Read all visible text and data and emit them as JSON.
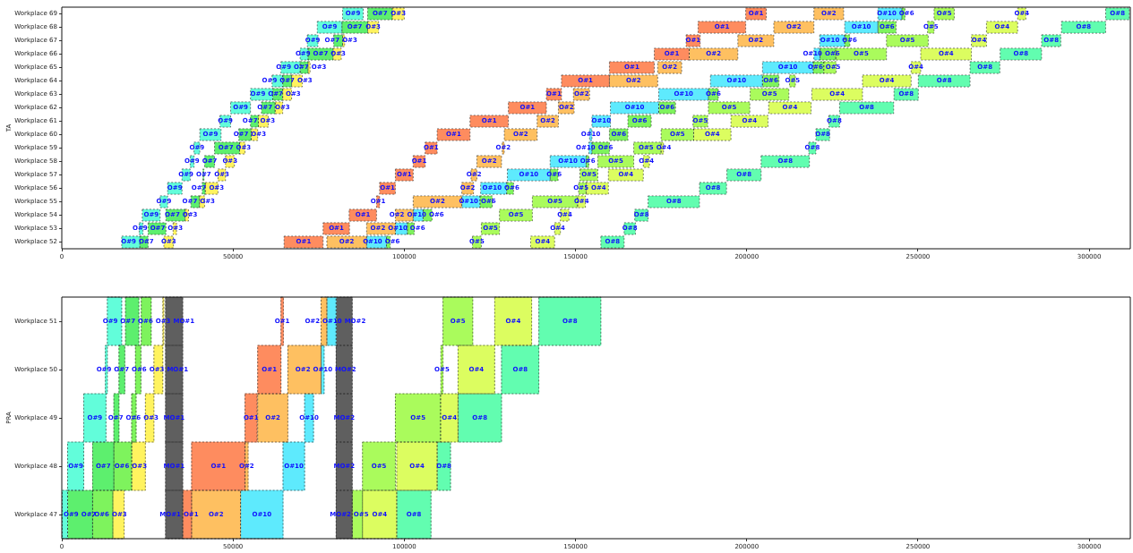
{
  "chart_data": [
    {
      "type": "bar",
      "orientation": "horizontal",
      "ylabel": "TA",
      "categories": [
        "Workplace 69",
        "Workplace 68",
        "Workplace 67",
        "Workplace 66",
        "Workplace 65",
        "Workplace 64",
        "Workplace 63",
        "Workplace 62",
        "Workplace 61",
        "Workplace 60",
        "Workplace 59",
        "Workplace 58",
        "Workplace 57",
        "Workplace 56",
        "Workplace 55",
        "Workplace 54",
        "Workplace 53",
        "Workplace 52"
      ],
      "series": [
        {
          "name": "O#9",
          "color": "#62fdda",
          "base": [
            82000,
            74600,
            71700,
            69600,
            64000,
            61400,
            55100,
            49300,
            46200,
            40300,
            38600,
            37500,
            35100,
            30900,
            28700,
            23500,
            22600,
            17500
          ],
          "values": [
            6000,
            7200,
            3100,
            2300,
            5600,
            3100,
            6500,
            5800,
            3100,
            6200,
            1700,
            1100,
            2400,
            4200,
            2200,
            5200,
            1100,
            5300
          ]
        },
        {
          "name": "O#7",
          "color": "#5def6e",
          "base": [
            89300,
            81800,
            79400,
            71900,
            69600,
            64500,
            61600,
            58300,
            55100,
            51700,
            44600,
            41700,
            41200,
            41000,
            37700,
            30400,
            25200,
            22800
          ],
          "values": [
            7200,
            7500,
            2600,
            7300,
            2300,
            2600,
            2900,
            4000,
            2300,
            3600,
            7300,
            2900,
            300,
            900,
            2500,
            5600,
            5200,
            2400
          ]
        },
        {
          "name": "O#3",
          "color": "#fff35f",
          "base": [
            96500,
            89300,
            82000,
            79200,
            71900,
            67100,
            64500,
            62300,
            57400,
            55300,
            51900,
            47800,
            45600,
            41900,
            40200,
            36000,
            32500,
            29800
          ],
          "values": [
            3500,
            3200,
            600,
            2400,
            600,
            3100,
            2600,
            2200,
            2900,
            1900,
            1600,
            2600,
            2200,
            3700,
            1500,
            1000,
            1000,
            2800
          ]
        },
        {
          "name": "O#1",
          "color": "#fe8c5f",
          "base": [
            199700,
            185800,
            182300,
            173000,
            159900,
            145900,
            141500,
            130400,
            119200,
            109600,
            106100,
            102600,
            97400,
            92800,
            91900,
            83900,
            76300,
            64900
          ],
          "values": [
            6000,
            13900,
            4100,
            10200,
            13100,
            14000,
            4400,
            11100,
            11200,
            9600,
            3500,
            3500,
            5200,
            4600,
            900,
            8000,
            7700,
            11400
          ]
        },
        {
          "name": "O#2",
          "color": "#fec061",
          "base": [
            219600,
            207900,
            197400,
            183200,
            174000,
            159900,
            149400,
            145000,
            138800,
            129200,
            128600,
            121200,
            119500,
            116800,
            102600,
            97400,
            89000,
            77400
          ],
          "values": [
            8700,
            11700,
            10500,
            14200,
            7000,
            14100,
            4700,
            4600,
            6200,
            9600,
            600,
            7200,
            1700,
            3400,
            14200,
            5200,
            8400,
            11600
          ]
        },
        {
          "name": "O#10",
          "color": "#5eeafd",
          "base": [
            238300,
            228600,
            221300,
            219600,
            204600,
            189400,
            174300,
            160200,
            154800,
            154100,
            153900,
            142600,
            130100,
            122300,
            116800,
            102600,
            97400,
            89000
          ],
          "values": [
            7000,
            9700,
            7300,
            1800,
            14800,
            15200,
            14500,
            14100,
            5400,
            700,
            900,
            10500,
            12500,
            7600,
            5300,
            2900,
            3500,
            5800
          ]
        },
        {
          "name": "O#6",
          "color": "#7ef35d",
          "base": [
            245300,
            238300,
            228600,
            221400,
            219400,
            204600,
            188800,
            174300,
            165300,
            159900,
            154800,
            153100,
            142600,
            129900,
            122100,
            105500,
            100900,
            94800
          ],
          "values": [
            900,
            5300,
            1500,
            4600,
            3100,
            4800,
            2900,
            4900,
            6800,
            5400,
            5100,
            800,
            2300,
            2000,
            3600,
            2600,
            2000,
            1100
          ]
        },
        {
          "name": "O#5",
          "color": "#aafb5c",
          "base": [
            254700,
            252800,
            240800,
            226000,
            222500,
            212500,
            201000,
            188800,
            184300,
            175000,
            167000,
            156500,
            151300,
            150900,
            137400,
            127800,
            122500,
            119900
          ],
          "values": [
            5900,
            1900,
            12200,
            14800,
            3600,
            1700,
            11300,
            12100,
            4300,
            9500,
            8000,
            10500,
            5200,
            2200,
            13200,
            9600,
            5300,
            2600
          ]
        },
        {
          "name": "O#4",
          "color": "#dcfd60",
          "base": [
            279100,
            270000,
            265600,
            250800,
            248000,
            233800,
            219000,
            206400,
            195400,
            184500,
            175000,
            169800,
            159600,
            153100,
            150600,
            145600,
            143900,
            136900
          ],
          "values": [
            2400,
            9100,
            4400,
            14800,
            2800,
            14200,
            14800,
            12400,
            10800,
            10900,
            700,
            1800,
            10200,
            6500,
            2300,
            2500,
            1700,
            7000
          ]
        },
        {
          "name": "O#8",
          "color": "#62fdb0",
          "base": [
            304800,
            291900,
            286100,
            274000,
            265200,
            250100,
            243000,
            227100,
            224000,
            220200,
            218100,
            204200,
            194200,
            186200,
            171200,
            167300,
            164200,
            157400
          ],
          "values": [
            6900,
            12900,
            5600,
            12100,
            8700,
            15100,
            7100,
            15800,
            3100,
            4000,
            2100,
            14100,
            10000,
            7900,
            15000,
            3900,
            3300,
            6800
          ]
        }
      ],
      "xlim": [
        0,
        312000
      ],
      "xticks": [
        0,
        50000,
        100000,
        150000,
        200000,
        250000,
        300000
      ]
    },
    {
      "type": "bar",
      "orientation": "horizontal",
      "ylabel": "PRA",
      "categories": [
        "Workplace 51",
        "Workplace 50",
        "Workplace 49",
        "Workplace 48",
        "Workplace 47"
      ],
      "series": [
        {
          "name": "O#9",
          "color": "#62fdda",
          "base": [
            13300,
            12700,
            6400,
            1700,
            0
          ],
          "values": [
            4200,
            600,
            6500,
            4700,
            1700
          ]
        },
        {
          "name": "O#7",
          "color": "#5def6e",
          "base": [
            18600,
            16700,
            15200,
            9000,
            1700
          ],
          "values": [
            3900,
            1700,
            1500,
            6200,
            7300
          ]
        },
        {
          "name": "O#6",
          "color": "#7ef35d",
          "base": [
            23200,
            21500,
            20400,
            15200,
            9000
          ],
          "values": [
            2900,
            1600,
            1300,
            5200,
            5900
          ]
        },
        {
          "name": "O#3",
          "color": "#fff35f",
          "base": [
            29500,
            26900,
            24400,
            20400,
            14900
          ],
          "values": [
            300,
            2600,
            2500,
            4000,
            3300
          ]
        },
        {
          "name": "MO#1",
          "color": "#5f5f5f",
          "base": [
            30300,
            30300,
            30300,
            30300,
            30300
          ],
          "values": [
            5000,
            5000,
            5000,
            5000,
            5000
          ]
        },
        {
          "name": "O#1",
          "color": "#fe8c5f",
          "base": [
            64000,
            57200,
            53500,
            37900,
            35300
          ],
          "values": [
            700,
            6800,
            3500,
            15600,
            2600
          ]
        },
        {
          "name": "O#2",
          "color": "#fec061",
          "base": [
            75700,
            66000,
            57200,
            53500,
            37900
          ],
          "values": [
            1700,
            9700,
            8800,
            900,
            14300
          ]
        },
        {
          "name": "O#10",
          "color": "#5eeafd",
          "base": [
            77400,
            75700,
            70900,
            64600,
            52200
          ],
          "values": [
            2700,
            900,
            2600,
            6300,
            12400
          ]
        },
        {
          "name": "MO#2",
          "color": "#5f5f5f",
          "base": [
            80100,
            80100,
            80100,
            80100,
            80100
          ],
          "values": [
            4700,
            4700,
            4700,
            4700,
            4700
          ]
        },
        {
          "name": "O#5",
          "color": "#aafb5c",
          "base": [
            111300,
            110700,
            97400,
            87800,
            84800
          ],
          "values": [
            8700,
            600,
            13200,
            9600,
            3000
          ]
        },
        {
          "name": "O#4",
          "color": "#dcfd60",
          "base": [
            126400,
            115700,
            110600,
            97800,
            87800
          ],
          "values": [
            10800,
            10700,
            5100,
            11800,
            10000
          ]
        },
        {
          "name": "O#8",
          "color": "#62fdb0",
          "base": [
            139300,
            128400,
            115700,
            109600,
            97800
          ],
          "values": [
            18100,
            10900,
            12700,
            3900,
            10000
          ]
        }
      ],
      "xlim": [
        0,
        312000
      ],
      "xticks": [
        0,
        50000,
        100000,
        150000,
        200000,
        250000,
        300000
      ]
    }
  ]
}
